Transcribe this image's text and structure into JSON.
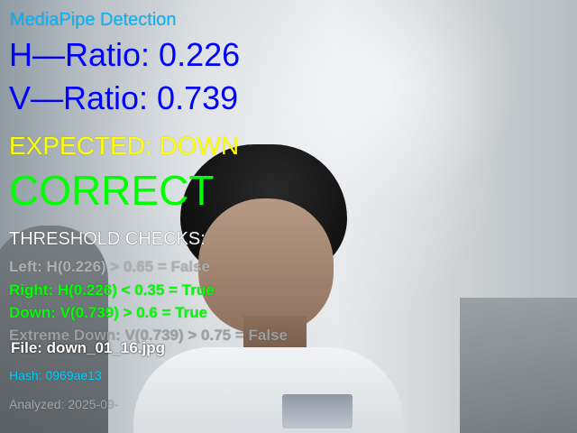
{
  "overlay": {
    "title": "MediaPipe Detection",
    "h_ratio": "H—Ratio: 0.226",
    "v_ratio": "V—Ratio: 0.739",
    "expected": "EXPECTED: DOWN",
    "result": "CORRECT",
    "checks_header": "THRESHOLD CHECKS:",
    "checks": [
      "Left: H(0.226) > 0.65 = False",
      "Right: H(0.226) < 0.35 = True",
      "Down: V(0.739) > 0.6 = True",
      "Extreme Down: V(0.739) > 0.75 = False"
    ],
    "file": "File: down_01_16.jpg",
    "hash": "Hash: 0969ae13",
    "analyzed": "Analyzed: 2025-09-"
  },
  "colors": {
    "title": "#00b7ff",
    "ratios": "#0000ff",
    "expected": "#ffff00",
    "result": "#00ff00",
    "checks_true": "#00ff00",
    "checks_false": "#a0a0a0",
    "hash": "#00d4ff",
    "analyzed": "#a7a7a7",
    "file": "#ffffff"
  }
}
